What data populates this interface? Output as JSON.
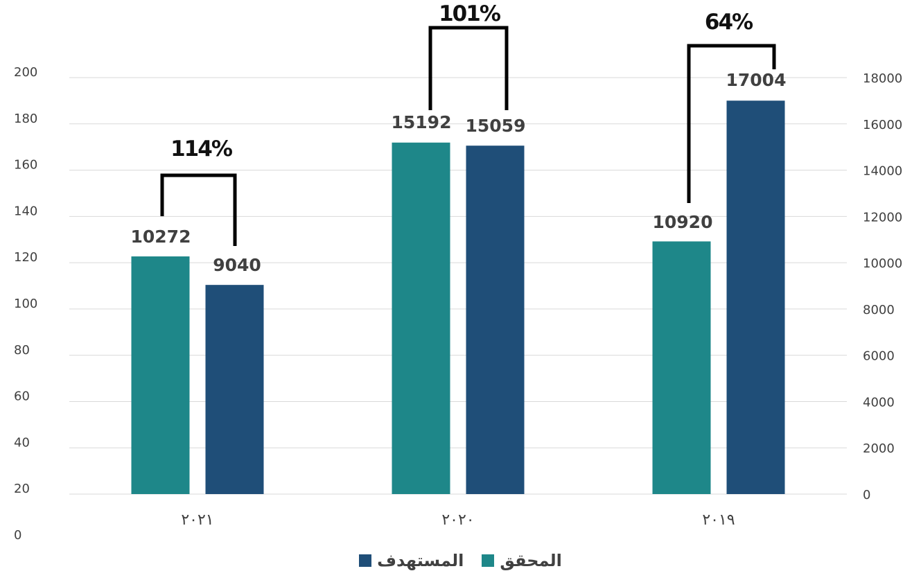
{
  "chart_data": {
    "type": "bar",
    "categories": [
      "٢٠٢١",
      "٢٠٢٠",
      "٢٠١٩"
    ],
    "series": [
      {
        "name": "المحقق",
        "color": "#1e8789",
        "values": [
          10272,
          15192,
          10920
        ]
      },
      {
        "name": "المستهدف",
        "color": "#1f4e78",
        "values": [
          9040,
          15059,
          17004
        ]
      }
    ],
    "percent_labels": [
      "114%",
      "101%",
      "64%"
    ],
    "left_axis": {
      "ticks": [
        "0",
        "20",
        "40",
        "60",
        "80",
        "100",
        "120",
        "140",
        "160",
        "180",
        "200"
      ]
    },
    "right_axis": {
      "ylim": [
        0,
        18000
      ],
      "ticks": [
        0,
        2000,
        4000,
        6000,
        8000,
        10000,
        12000,
        14000,
        16000,
        18000
      ]
    },
    "gridlines": true,
    "legend_position": "bottom",
    "title": "",
    "xlabel": "",
    "ylabel": ""
  }
}
